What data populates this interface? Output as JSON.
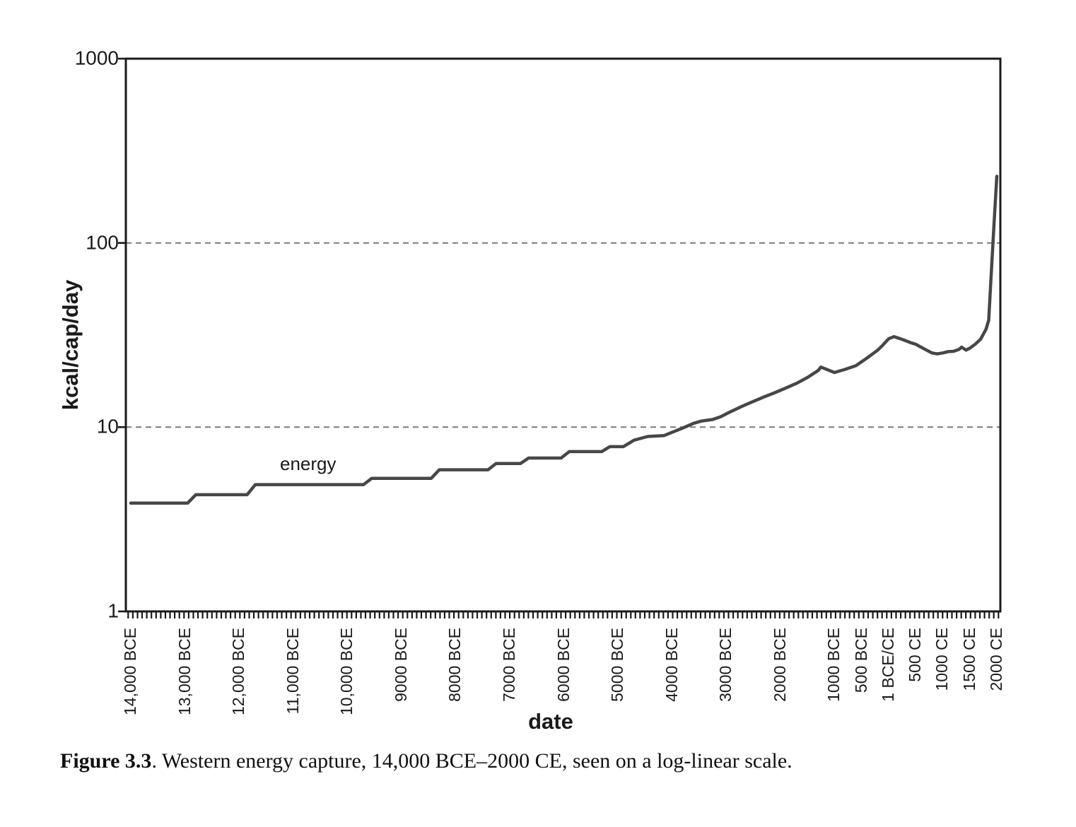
{
  "figure": {
    "caption_label": "Figure 3.3",
    "caption_text": ". Western energy capture, 14,000 BCE–2000 CE, seen on a log-linear scale."
  },
  "chart_data": {
    "type": "line",
    "title": "",
    "xlabel": "date",
    "ylabel": "kcal/cap/day",
    "series_label": "energy",
    "y_scale": "log",
    "ylim": [
      1,
      1000
    ],
    "y_ticks": [
      "1",
      "10",
      "100",
      "1000"
    ],
    "y_tick_values": [
      1,
      10,
      100,
      1000
    ],
    "y_gridlines": [
      10,
      100
    ],
    "grid_style": "dashed",
    "legend_position": "inline-label",
    "x_domain_years": [
      -14000,
      2000
    ],
    "x_ticks": [
      {
        "label": "14,000 BCE",
        "year": -14000
      },
      {
        "label": "13,000 BCE",
        "year": -13000
      },
      {
        "label": "12,000 BCE",
        "year": -12000
      },
      {
        "label": "11,000 BCE",
        "year": -11000
      },
      {
        "label": "10,000 BCE",
        "year": -10000
      },
      {
        "label": "9000 BCE",
        "year": -9000
      },
      {
        "label": "8000 BCE",
        "year": -8000
      },
      {
        "label": "7000 BCE",
        "year": -7000
      },
      {
        "label": "6000 BCE",
        "year": -6000
      },
      {
        "label": "5000 BCE",
        "year": -5000
      },
      {
        "label": "4000 BCE",
        "year": -4000
      },
      {
        "label": "3000 BCE",
        "year": -3000
      },
      {
        "label": "2000 BCE",
        "year": -2000
      },
      {
        "label": "1000 BCE",
        "year": -1000
      },
      {
        "label": "500 BCE",
        "year": -500
      },
      {
        "label": "1 BCE/CE",
        "year": 1
      },
      {
        "label": "500 CE",
        "year": 500
      },
      {
        "label": "1000 CE",
        "year": 1000
      },
      {
        "label": "1500 CE",
        "year": 1500
      },
      {
        "label": "2000 CE",
        "year": 2000
      }
    ],
    "points": [
      [
        -14000,
        3.87
      ],
      [
        -12950,
        3.87
      ],
      [
        -12800,
        4.3
      ],
      [
        -11850,
        4.3
      ],
      [
        -11700,
        4.88
      ],
      [
        -9700,
        4.88
      ],
      [
        -9550,
        5.27
      ],
      [
        -8450,
        5.27
      ],
      [
        -8300,
        5.87
      ],
      [
        -7400,
        5.87
      ],
      [
        -7250,
        6.35
      ],
      [
        -6800,
        6.35
      ],
      [
        -6650,
        6.8
      ],
      [
        -6050,
        6.8
      ],
      [
        -5900,
        7.37
      ],
      [
        -5300,
        7.37
      ],
      [
        -5150,
        7.84
      ],
      [
        -4900,
        7.84
      ],
      [
        -4700,
        8.5
      ],
      [
        -4450,
        8.9
      ],
      [
        -4150,
        9.0
      ],
      [
        -3950,
        9.5
      ],
      [
        -3800,
        9.9
      ],
      [
        -3600,
        10.5
      ],
      [
        -3450,
        10.8
      ],
      [
        -3250,
        11.0
      ],
      [
        -3100,
        11.4
      ],
      [
        -2900,
        12.2
      ],
      [
        -2700,
        13.0
      ],
      [
        -2500,
        13.8
      ],
      [
        -2300,
        14.6
      ],
      [
        -2100,
        15.4
      ],
      [
        -1900,
        16.3
      ],
      [
        -1700,
        17.3
      ],
      [
        -1500,
        18.6
      ],
      [
        -1300,
        20.3
      ],
      [
        -1250,
        21.2
      ],
      [
        -1000,
        19.8
      ],
      [
        -800,
        20.6
      ],
      [
        -600,
        21.6
      ],
      [
        -400,
        23.7
      ],
      [
        -200,
        26.2
      ],
      [
        -100,
        28.0
      ],
      [
        1,
        30.2
      ],
      [
        100,
        31.0
      ],
      [
        200,
        30.3
      ],
      [
        300,
        29.6
      ],
      [
        400,
        28.8
      ],
      [
        500,
        28.2
      ],
      [
        600,
        27.2
      ],
      [
        700,
        26.2
      ],
      [
        800,
        25.3
      ],
      [
        900,
        25.0
      ],
      [
        1000,
        25.3
      ],
      [
        1100,
        25.7
      ],
      [
        1200,
        25.8
      ],
      [
        1300,
        26.4
      ],
      [
        1350,
        27.2
      ],
      [
        1430,
        26.2
      ],
      [
        1500,
        26.8
      ],
      [
        1600,
        28.2
      ],
      [
        1700,
        30.0
      ],
      [
        1800,
        34.0
      ],
      [
        1850,
        38.0
      ],
      [
        1900,
        70
      ],
      [
        1950,
        130
      ],
      [
        2000,
        230
      ]
    ],
    "colors": {
      "line": "#474747",
      "axis": "#1a1a1a",
      "grid": "#7a7a7a",
      "text": "#1a1a1a",
      "background": "#ffffff"
    }
  }
}
